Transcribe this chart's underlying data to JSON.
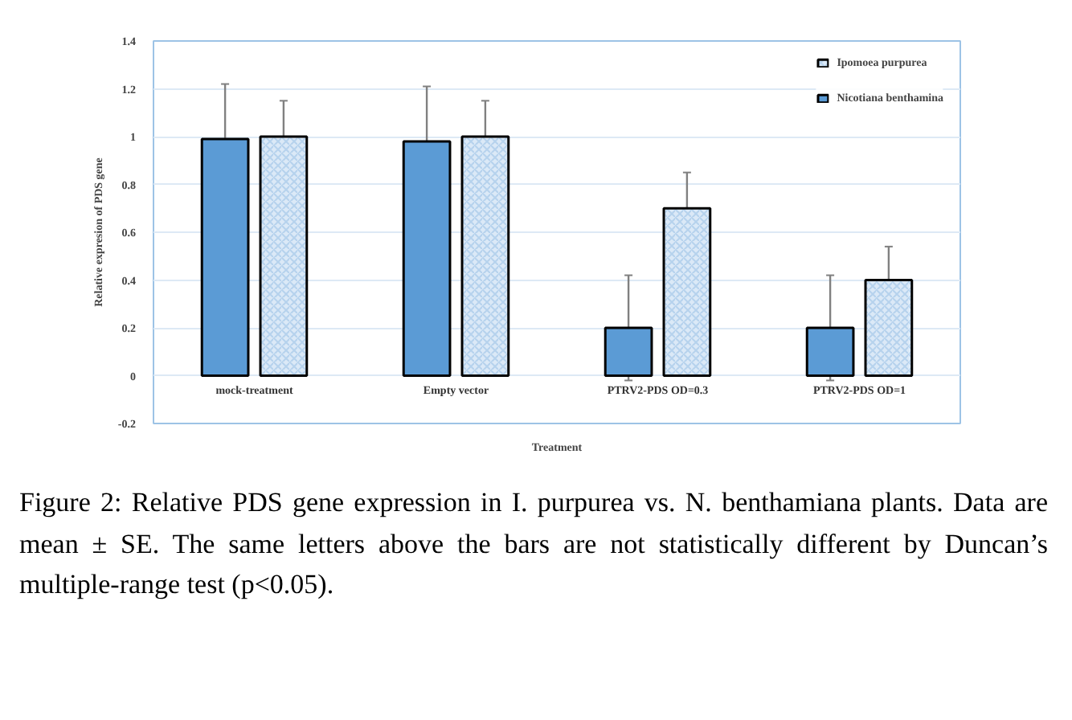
{
  "chart_data": {
    "type": "bar",
    "xlabel": "Treatment",
    "ylabel": "Relative expresion of PDS gene",
    "categories": [
      "mock-treatment",
      "Empty vector",
      "PTRV2-PDS OD=0.3",
      "PTRV2-PDS OD=1"
    ],
    "series": [
      {
        "name": "Nicotiana benthamina",
        "color": "#5b9bd5",
        "values": [
          0.99,
          0.98,
          0.2,
          0.2
        ],
        "errors": [
          0.23,
          0.23,
          0.22,
          0.22
        ]
      },
      {
        "name": "Ipomoea purpurea",
        "color": "#dbe9f7",
        "values": [
          1.0,
          1.0,
          0.7,
          0.4
        ],
        "errors": [
          0.15,
          0.15,
          0.15,
          0.14
        ]
      }
    ],
    "ylim": [
      -0.2,
      1.4
    ],
    "yticks": [
      {
        "value": -0.2,
        "label": "-0.2"
      },
      {
        "value": 0,
        "label": "0"
      },
      {
        "value": 0.2,
        "label": "0.2"
      },
      {
        "value": 0.4,
        "label": "0.4"
      },
      {
        "value": 0.6,
        "label": "0.6"
      },
      {
        "value": 0.8,
        "label": "0.8"
      },
      {
        "value": 1,
        "label": "1"
      },
      {
        "value": 1.2,
        "label": "1.2"
      },
      {
        "value": 1.4,
        "label": "1.4"
      }
    ],
    "grid": "y",
    "legend": "top right",
    "annotations": [
      "Figure 2: Relative PDS gene expression in I. purpurea vs. N. benthamiana plants. Data are mean ± SE. The same letters above the bars are not statistically different by Duncan’s multiple-range test (p<0.05)."
    ]
  }
}
